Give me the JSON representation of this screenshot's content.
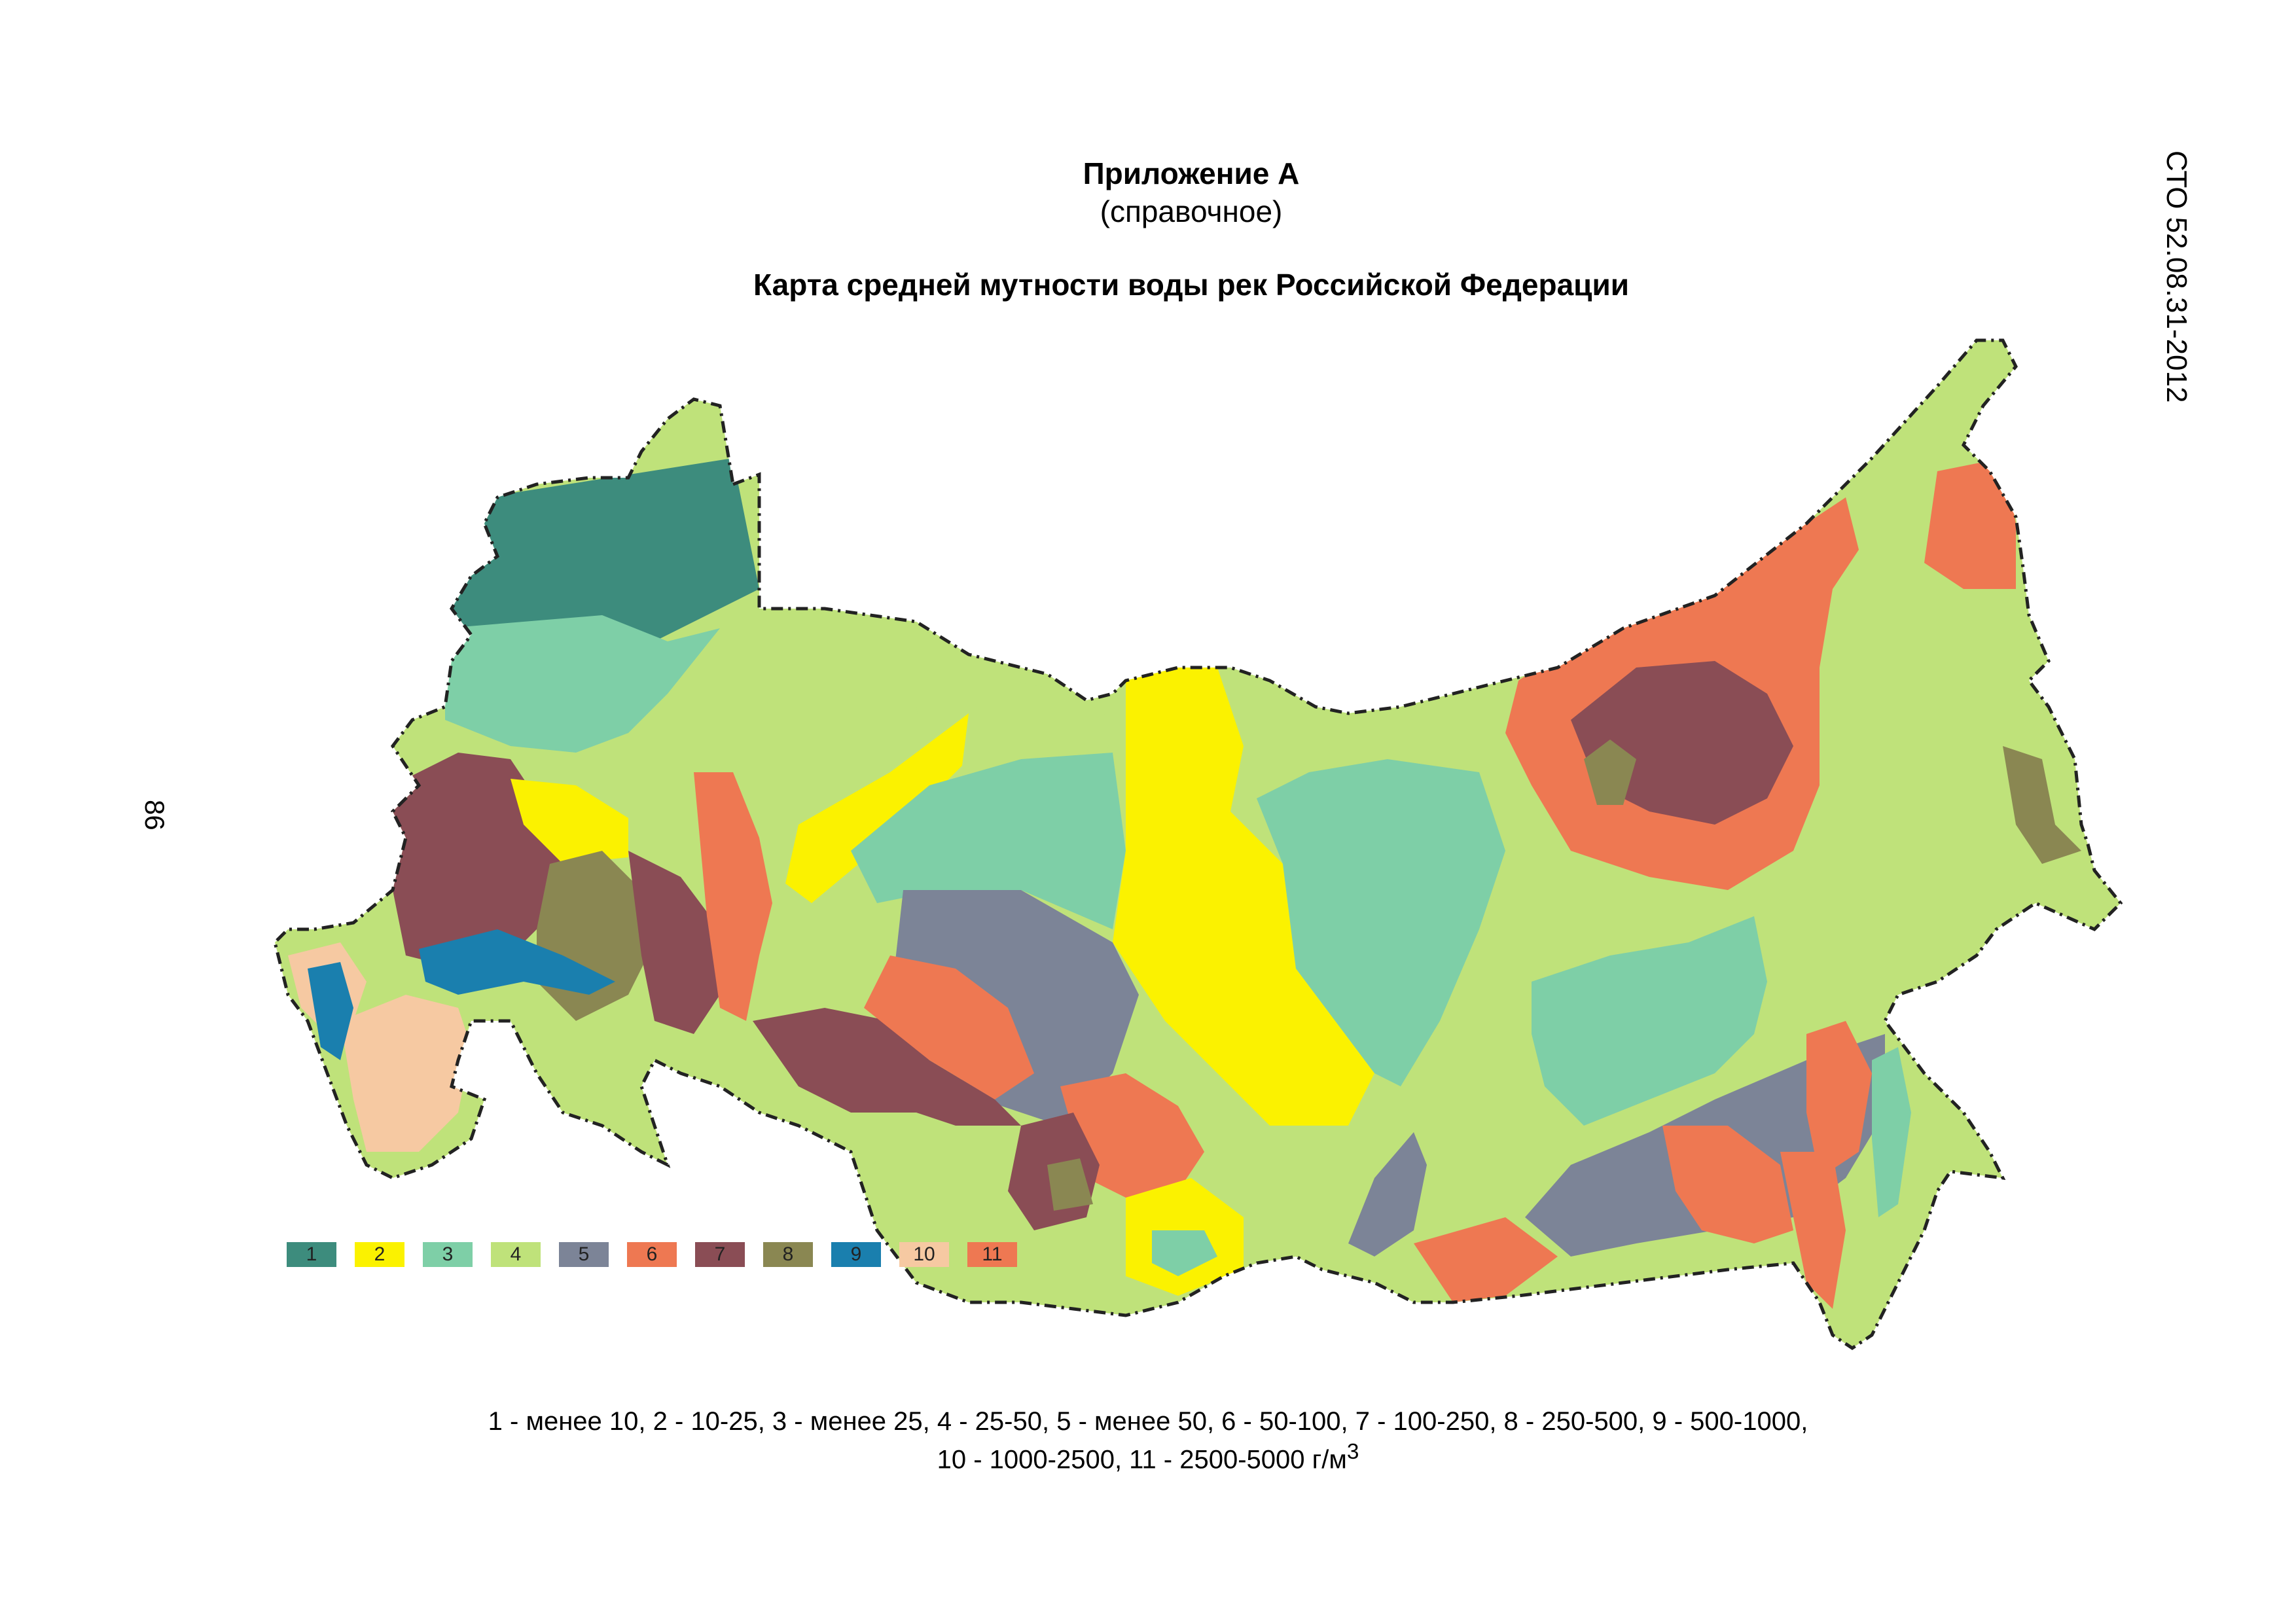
{
  "header": {
    "annex": "Приложение А",
    "annex_note": "(справочное)",
    "map_title": "Карта средней мутности воды рек Российской Федерации",
    "doc_code": "СТО 52.08.31-2012",
    "page_number": "86"
  },
  "legend": [
    {
      "label": "1",
      "color": "#3d8c7d"
    },
    {
      "label": "2",
      "color": "#fbf200"
    },
    {
      "label": "3",
      "color": "#7ecfa7"
    },
    {
      "label": "4",
      "color": "#bfe27a"
    },
    {
      "label": "5",
      "color": "#7c8497"
    },
    {
      "label": "6",
      "color": "#ee7852"
    },
    {
      "label": "7",
      "color": "#8a4d55"
    },
    {
      "label": "8",
      "color": "#8a8752"
    },
    {
      "label": "9",
      "color": "#1a7fae"
    },
    {
      "label": "10",
      "color": "#f6c9a2"
    },
    {
      "label": "11",
      "color": "#ee7852"
    }
  ],
  "caption": {
    "line1": "1 - менее 10,   2 - 10-25,   3 - менее 25,   4 - 25-50,   5 - менее 50,   6 - 50-100,   7 - 100-250,   8 - 250-500,   9 - 500-1000,",
    "line2_main": "10 - 1000-2500,   11 - 2500-5000 г/м",
    "line2_sup": "3"
  }
}
